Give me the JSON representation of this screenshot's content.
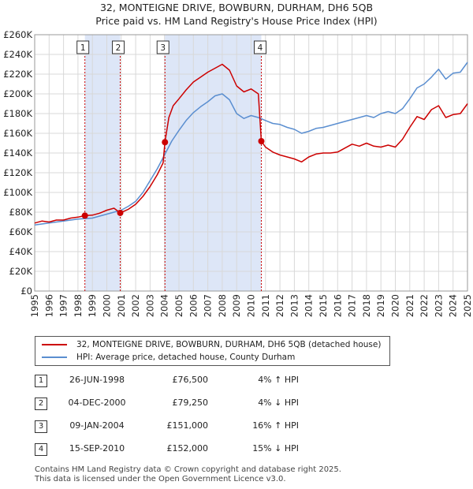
{
  "title_line1": "32, MONTEIGNE DRIVE, BOWBURN, DURHAM, DH6 5QB",
  "title_line2": "Price paid vs. HM Land Registry's House Price Index (HPI)",
  "colors": {
    "property": "#cc0000",
    "hpi": "#5a8ed0",
    "shade": "#dde6f7",
    "grid": "#d8d8d8"
  },
  "legend": {
    "property_label": "32, MONTEIGNE DRIVE, BOWBURN, DURHAM, DH6 5QB (detached house)",
    "hpi_label": "HPI: Average price, detached house, County Durham"
  },
  "sales": [
    {
      "num": "1",
      "date": "26-JUN-1998",
      "price": "£76,500",
      "hpi": "4% ↑ HPI"
    },
    {
      "num": "2",
      "date": "04-DEC-2000",
      "price": "£79,250",
      "hpi": "4% ↓ HPI"
    },
    {
      "num": "3",
      "date": "09-JAN-2004",
      "price": "£151,000",
      "hpi": "16% ↑ HPI"
    },
    {
      "num": "4",
      "date": "15-SEP-2010",
      "price": "£152,000",
      "hpi": "15% ↓ HPI"
    }
  ],
  "footer_line1": "Contains HM Land Registry data © Crown copyright and database right 2025.",
  "footer_line2": "This data is licensed under the Open Government Licence v3.0.",
  "chart_data": {
    "type": "line",
    "xlim": [
      1995,
      2025
    ],
    "ylim": [
      0,
      260000
    ],
    "y_ticks": [
      0,
      20000,
      40000,
      60000,
      80000,
      100000,
      120000,
      140000,
      160000,
      180000,
      200000,
      220000,
      240000,
      260000
    ],
    "y_tick_labels": [
      "£0",
      "£20K",
      "£40K",
      "£60K",
      "£80K",
      "£100K",
      "£120K",
      "£140K",
      "£160K",
      "£180K",
      "£200K",
      "£220K",
      "£240K",
      "£260K"
    ],
    "x_ticks": [
      1995,
      1996,
      1997,
      1998,
      1999,
      2000,
      2001,
      2002,
      2003,
      2004,
      2005,
      2006,
      2007,
      2008,
      2009,
      2010,
      2011,
      2012,
      2013,
      2014,
      2015,
      2016,
      2017,
      2018,
      2019,
      2020,
      2021,
      2022,
      2023,
      2024,
      2025
    ],
    "x_tick_labels": [
      "1995",
      "1996",
      "1997",
      "1998",
      "1999",
      "2000",
      "2001",
      "2002",
      "2003",
      "2004",
      "2005",
      "2006",
      "2007",
      "2008",
      "2009",
      "2010",
      "2011",
      "2012",
      "2013",
      "2014",
      "2015",
      "2016",
      "2017",
      "2018",
      "2019",
      "2020",
      "2021",
      "2022",
      "2023",
      "2024",
      "2025"
    ],
    "shaded_ranges": [
      [
        1998.48,
        2000.93
      ],
      [
        2004.03,
        2010.71
      ]
    ],
    "markers": [
      {
        "label": "1",
        "x": 1998.48,
        "y": 76500
      },
      {
        "label": "2",
        "x": 2000.93,
        "y": 79250
      },
      {
        "label": "3",
        "x": 2004.03,
        "y": 151000
      },
      {
        "label": "4",
        "x": 2010.71,
        "y": 152000
      }
    ],
    "series": [
      {
        "name": "32, MONTEIGNE DRIVE, BOWBURN, DURHAM, DH6 5QB (detached house)",
        "color": "#cc0000",
        "x": [
          1995.0,
          1995.5,
          1996.0,
          1996.5,
          1997.0,
          1997.5,
          1998.0,
          1998.48,
          1999.0,
          1999.5,
          2000.0,
          2000.5,
          2000.93,
          2001.5,
          2002.0,
          2002.5,
          2003.0,
          2003.5,
          2003.9,
          2004.03,
          2004.3,
          2004.6,
          2005.0,
          2005.5,
          2006.0,
          2006.5,
          2007.0,
          2007.5,
          2008.0,
          2008.5,
          2009.0,
          2009.5,
          2010.0,
          2010.5,
          2010.71,
          2011.0,
          2011.5,
          2012.0,
          2012.5,
          2013.0,
          2013.5,
          2014.0,
          2014.5,
          2015.0,
          2015.5,
          2016.0,
          2016.5,
          2017.0,
          2017.5,
          2018.0,
          2018.5,
          2019.0,
          2019.5,
          2020.0,
          2020.5,
          2021.0,
          2021.5,
          2022.0,
          2022.5,
          2023.0,
          2023.5,
          2024.0,
          2024.5,
          2025.0
        ],
        "y": [
          69000,
          71000,
          70000,
          72000,
          72000,
          74000,
          75000,
          76500,
          77000,
          79000,
          82000,
          84000,
          79250,
          83000,
          88000,
          96000,
          106000,
          118000,
          130000,
          151000,
          176000,
          188000,
          195000,
          204000,
          212000,
          217000,
          222000,
          226000,
          230000,
          224000,
          208000,
          202000,
          205000,
          200000,
          152000,
          146000,
          141000,
          138000,
          136000,
          134000,
          131000,
          136000,
          139000,
          140000,
          140000,
          141000,
          145000,
          149000,
          147000,
          150000,
          147000,
          146000,
          148000,
          146000,
          154000,
          166000,
          177000,
          174000,
          184000,
          188000,
          176000,
          179000,
          180000,
          190000
        ]
      },
      {
        "name": "HPI: Average price, detached house, County Durham",
        "color": "#5a8ed0",
        "x": [
          1995.0,
          1995.5,
          1996.0,
          1996.5,
          1997.0,
          1997.5,
          1998.0,
          1998.5,
          1999.0,
          1999.5,
          2000.0,
          2000.5,
          2001.0,
          2001.5,
          2002.0,
          2002.5,
          2003.0,
          2003.5,
          2004.0,
          2004.5,
          2005.0,
          2005.5,
          2006.0,
          2006.5,
          2007.0,
          2007.5,
          2008.0,
          2008.5,
          2009.0,
          2009.5,
          2010.0,
          2010.5,
          2011.0,
          2011.5,
          2012.0,
          2012.5,
          2013.0,
          2013.5,
          2014.0,
          2014.5,
          2015.0,
          2015.5,
          2016.0,
          2016.5,
          2017.0,
          2017.5,
          2018.0,
          2018.5,
          2019.0,
          2019.5,
          2020.0,
          2020.5,
          2021.0,
          2021.5,
          2022.0,
          2022.5,
          2023.0,
          2023.5,
          2024.0,
          2024.5,
          2025.0
        ],
        "y": [
          67000,
          68000,
          69000,
          70000,
          71000,
          72000,
          73000,
          73500,
          74000,
          76000,
          78000,
          80000,
          82000,
          86000,
          91000,
          100000,
          112000,
          124000,
          138000,
          152000,
          163000,
          173000,
          181000,
          187000,
          192000,
          198000,
          200000,
          194000,
          180000,
          175000,
          178000,
          176000,
          173000,
          170000,
          169000,
          166000,
          164000,
          160000,
          162000,
          165000,
          166000,
          168000,
          170000,
          172000,
          174000,
          176000,
          178000,
          176000,
          180000,
          182000,
          180000,
          185000,
          195000,
          206000,
          210000,
          217000,
          225000,
          215000,
          221000,
          222000,
          232000
        ]
      }
    ]
  }
}
